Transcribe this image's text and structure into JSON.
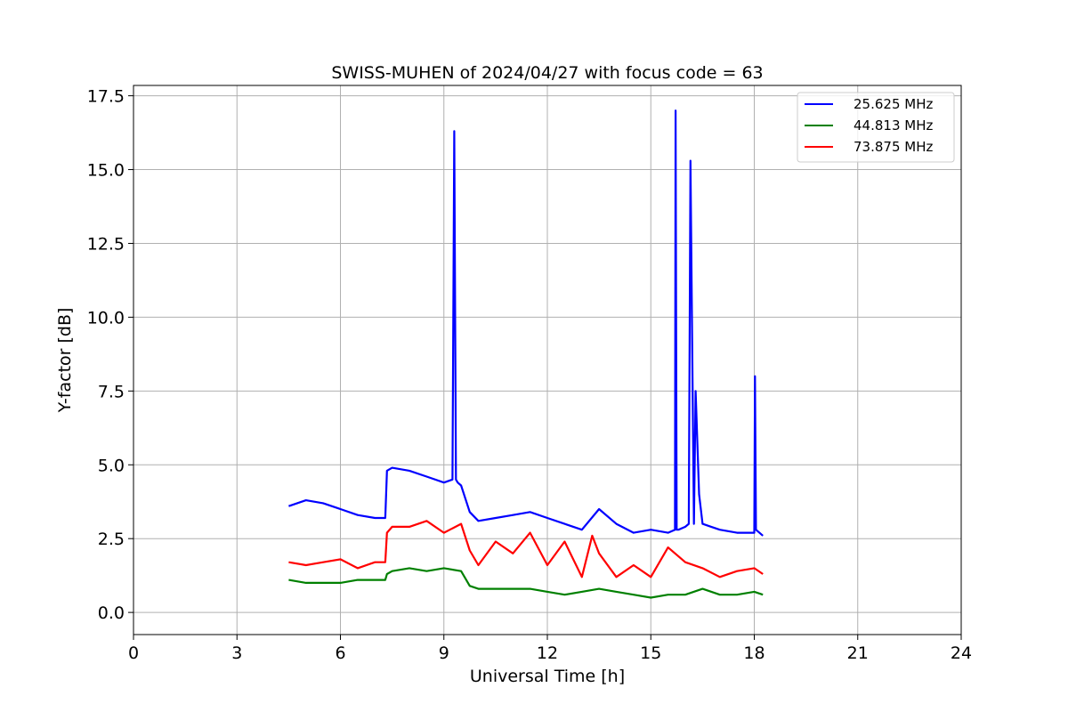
{
  "chart_data": {
    "type": "line",
    "title": "SWISS-MUHEN of 2024/04/27 with focus code = 63",
    "xlabel": "Universal Time [h]",
    "ylabel": "Y-factor [dB]",
    "xlim": [
      0,
      24
    ],
    "ylim": [
      -0.75,
      17.85
    ],
    "x_ticks": [
      0,
      3,
      6,
      9,
      12,
      15,
      18,
      21,
      24
    ],
    "x_tick_labels": [
      "0",
      "3",
      "6",
      "9",
      "12",
      "15",
      "18",
      "21",
      "24"
    ],
    "y_ticks": [
      0.0,
      2.5,
      5.0,
      7.5,
      10.0,
      12.5,
      15.0,
      17.5
    ],
    "y_tick_labels": [
      "0.0",
      "2.5",
      "5.0",
      "7.5",
      "10.0",
      "12.5",
      "15.0",
      "17.5"
    ],
    "grid": true,
    "legend_position": "top-right",
    "series": [
      {
        "name": "25.625 MHz",
        "color": "#0000ff",
        "x": [
          4.5,
          5.0,
          5.5,
          6.0,
          6.5,
          7.0,
          7.3,
          7.35,
          7.5,
          8.0,
          8.5,
          9.0,
          9.25,
          9.3,
          9.35,
          9.4,
          9.5,
          9.75,
          10.0,
          10.5,
          11.0,
          11.5,
          12.0,
          12.5,
          13.0,
          13.5,
          14.0,
          14.5,
          15.0,
          15.5,
          15.7,
          15.72,
          15.75,
          15.8,
          16.0,
          16.1,
          16.15,
          16.2,
          16.25,
          16.3,
          16.4,
          16.5,
          16.75,
          17.0,
          17.5,
          18.0,
          18.02,
          18.05,
          18.25
        ],
        "y": [
          3.6,
          3.8,
          3.7,
          3.5,
          3.3,
          3.2,
          3.2,
          4.8,
          4.9,
          4.8,
          4.6,
          4.4,
          4.5,
          16.3,
          4.5,
          4.4,
          4.3,
          3.4,
          3.1,
          3.2,
          3.3,
          3.4,
          3.2,
          3.0,
          2.8,
          3.5,
          3.0,
          2.7,
          2.8,
          2.7,
          2.8,
          17.0,
          2.8,
          2.8,
          2.9,
          3.0,
          15.3,
          9.2,
          3.0,
          7.5,
          4.0,
          3.0,
          2.9,
          2.8,
          2.7,
          2.7,
          8.0,
          2.8,
          2.6
        ]
      },
      {
        "name": "44.813 MHz",
        "color": "#008000",
        "x": [
          4.5,
          5.0,
          5.5,
          6.0,
          6.5,
          7.0,
          7.3,
          7.35,
          7.5,
          8.0,
          8.5,
          9.0,
          9.5,
          9.75,
          10.0,
          10.5,
          11.0,
          11.5,
          12.0,
          12.5,
          13.0,
          13.5,
          14.0,
          14.5,
          15.0,
          15.5,
          16.0,
          16.5,
          17.0,
          17.5,
          18.0,
          18.25
        ],
        "y": [
          1.1,
          1.0,
          1.0,
          1.0,
          1.1,
          1.1,
          1.1,
          1.3,
          1.4,
          1.5,
          1.4,
          1.5,
          1.4,
          0.9,
          0.8,
          0.8,
          0.8,
          0.8,
          0.7,
          0.6,
          0.7,
          0.8,
          0.7,
          0.6,
          0.5,
          0.6,
          0.6,
          0.8,
          0.6,
          0.6,
          0.7,
          0.6
        ]
      },
      {
        "name": "73.875 MHz",
        "color": "#ff0000",
        "x": [
          4.5,
          5.0,
          5.5,
          6.0,
          6.5,
          7.0,
          7.3,
          7.35,
          7.5,
          8.0,
          8.5,
          9.0,
          9.5,
          9.75,
          10.0,
          10.5,
          11.0,
          11.5,
          12.0,
          12.5,
          13.0,
          13.3,
          13.5,
          14.0,
          14.5,
          15.0,
          15.5,
          16.0,
          16.5,
          17.0,
          17.5,
          18.0,
          18.25
        ],
        "y": [
          1.7,
          1.6,
          1.7,
          1.8,
          1.5,
          1.7,
          1.7,
          2.7,
          2.9,
          2.9,
          3.1,
          2.7,
          3.0,
          2.1,
          1.6,
          2.4,
          2.0,
          2.7,
          1.6,
          2.4,
          1.2,
          2.6,
          2.0,
          1.2,
          1.6,
          1.2,
          2.2,
          1.7,
          1.5,
          1.2,
          1.4,
          1.5,
          1.3
        ]
      }
    ]
  }
}
